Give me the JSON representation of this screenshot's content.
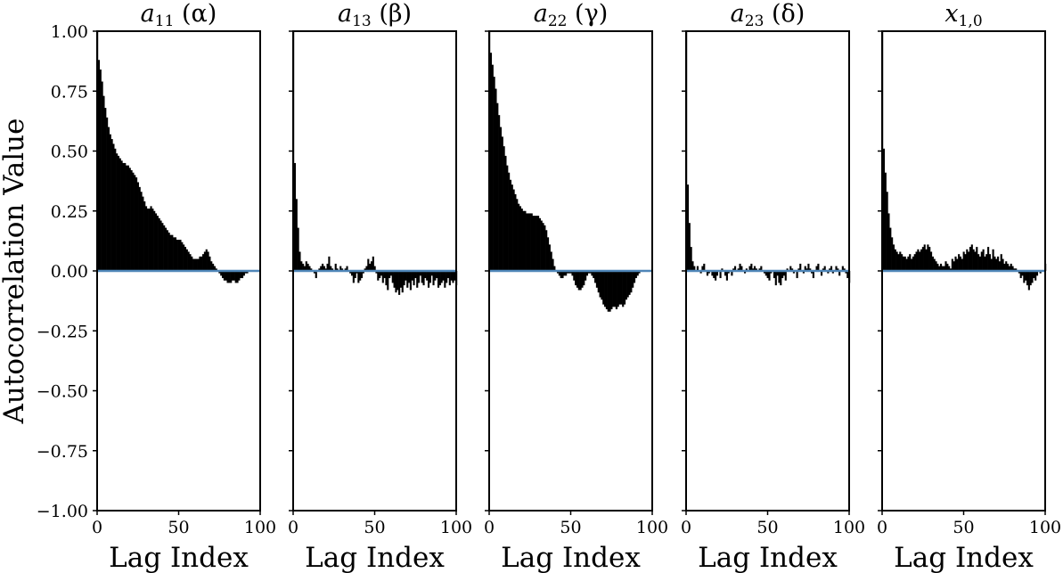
{
  "chart_data": {
    "type": "bar",
    "ylabel": "Autocorrelation Value",
    "ylim": [
      -1.0,
      1.0
    ],
    "yticks": [
      1.0,
      0.75,
      0.5,
      0.25,
      0.0,
      -0.25,
      -0.5,
      -0.75,
      -1.0
    ],
    "yticklabels": [
      "1.00",
      "0.75",
      "0.50",
      "0.25",
      "0.00",
      "−0.25",
      "−0.50",
      "−0.75",
      "−1.00"
    ],
    "xlim": [
      0,
      100
    ],
    "xticks": [
      0,
      50,
      100
    ],
    "xticklabels": [
      "0",
      "50",
      "100"
    ],
    "zero_line_color": "#4f86b8",
    "bar_color": "#000000",
    "grid": false,
    "panels": [
      {
        "title_main": "a",
        "title_sub": "11",
        "title_tail": " (α)",
        "xlabel": "Lag Index",
        "lags": [
          0,
          1,
          2,
          3,
          4,
          5,
          6,
          7,
          8,
          9,
          10,
          11,
          12,
          13,
          14,
          15,
          16,
          17,
          18,
          19,
          20,
          21,
          22,
          23,
          24,
          25,
          26,
          27,
          28,
          29,
          30,
          31,
          32,
          33,
          34,
          35,
          36,
          37,
          38,
          39,
          40,
          41,
          42,
          43,
          44,
          45,
          46,
          47,
          48,
          49,
          50,
          51,
          52,
          53,
          54,
          55,
          56,
          57,
          58,
          59,
          60,
          61,
          62,
          63,
          64,
          65,
          66,
          67,
          68,
          69,
          70,
          71,
          72,
          73,
          74,
          75,
          76,
          77,
          78,
          79,
          80,
          81,
          82,
          83,
          84,
          85,
          86,
          87,
          88,
          89,
          90,
          91,
          92,
          93,
          94,
          95,
          96,
          97,
          98,
          99,
          100
        ],
        "values": [
          1.0,
          0.88,
          0.84,
          0.79,
          0.73,
          0.68,
          0.64,
          0.6,
          0.57,
          0.55,
          0.53,
          0.51,
          0.49,
          0.48,
          0.47,
          0.46,
          0.45,
          0.45,
          0.44,
          0.44,
          0.43,
          0.42,
          0.41,
          0.4,
          0.39,
          0.37,
          0.35,
          0.33,
          0.31,
          0.29,
          0.27,
          0.26,
          0.26,
          0.27,
          0.26,
          0.25,
          0.24,
          0.23,
          0.22,
          0.21,
          0.2,
          0.19,
          0.18,
          0.17,
          0.16,
          0.15,
          0.15,
          0.14,
          0.14,
          0.13,
          0.13,
          0.13,
          0.12,
          0.11,
          0.1,
          0.09,
          0.08,
          0.07,
          0.06,
          0.05,
          0.05,
          0.05,
          0.05,
          0.06,
          0.06,
          0.07,
          0.08,
          0.09,
          0.08,
          0.06,
          0.04,
          0.03,
          0.02,
          0.01,
          0.0,
          -0.01,
          -0.02,
          -0.03,
          -0.04,
          -0.04,
          -0.05,
          -0.05,
          -0.05,
          -0.04,
          -0.04,
          -0.05,
          -0.05,
          -0.04,
          -0.03,
          -0.03,
          -0.02,
          -0.01,
          -0.01,
          0.0,
          0.0,
          0.0,
          0.0,
          0.0,
          0.0,
          0.0,
          0.0
        ]
      },
      {
        "title_main": "a",
        "title_sub": "13",
        "title_tail": " (β)",
        "xlabel": "Lag Index",
        "lags": [
          0,
          1,
          2,
          3,
          4,
          5,
          6,
          7,
          8,
          9,
          10,
          11,
          12,
          13,
          14,
          15,
          16,
          17,
          18,
          19,
          20,
          21,
          22,
          23,
          24,
          25,
          26,
          27,
          28,
          29,
          30,
          31,
          32,
          33,
          34,
          35,
          36,
          37,
          38,
          39,
          40,
          41,
          42,
          43,
          44,
          45,
          46,
          47,
          48,
          49,
          50,
          51,
          52,
          53,
          54,
          55,
          56,
          57,
          58,
          59,
          60,
          61,
          62,
          63,
          64,
          65,
          66,
          67,
          68,
          69,
          70,
          71,
          72,
          73,
          74,
          75,
          76,
          77,
          78,
          79,
          80,
          81,
          82,
          83,
          84,
          85,
          86,
          87,
          88,
          89,
          90,
          91,
          92,
          93,
          94,
          95,
          96,
          97,
          98,
          99,
          100
        ],
        "values": [
          1.0,
          0.45,
          0.3,
          0.18,
          0.08,
          0.04,
          0.03,
          0.02,
          0.04,
          0.03,
          0.02,
          0.01,
          0.0,
          -0.01,
          -0.03,
          0.0,
          0.01,
          0.02,
          0.03,
          0.02,
          0.01,
          0.03,
          0.06,
          0.02,
          0.01,
          0.0,
          0.03,
          0.01,
          0.0,
          0.02,
          0.01,
          0.0,
          0.01,
          0.02,
          0.0,
          -0.01,
          -0.02,
          -0.05,
          -0.03,
          -0.01,
          -0.05,
          -0.04,
          -0.03,
          -0.01,
          0.01,
          0.02,
          0.05,
          0.03,
          0.04,
          0.06,
          0.02,
          -0.01,
          -0.04,
          -0.03,
          -0.02,
          -0.05,
          -0.03,
          -0.06,
          -0.08,
          -0.03,
          -0.02,
          -0.05,
          -0.07,
          -0.09,
          -0.08,
          -0.1,
          -0.07,
          -0.09,
          -0.06,
          -0.04,
          -0.07,
          -0.05,
          -0.08,
          -0.04,
          -0.06,
          -0.03,
          -0.07,
          -0.05,
          -0.02,
          -0.05,
          -0.06,
          -0.03,
          -0.04,
          -0.07,
          -0.05,
          -0.02,
          -0.06,
          -0.04,
          -0.03,
          -0.07,
          -0.06,
          -0.05,
          -0.04,
          -0.07,
          -0.05,
          -0.03,
          -0.06,
          -0.04,
          -0.05,
          -0.04,
          -0.06
        ]
      },
      {
        "title_main": "a",
        "title_sub": "22",
        "title_tail": " (γ)",
        "xlabel": "Lag Index",
        "lags": [
          0,
          1,
          2,
          3,
          4,
          5,
          6,
          7,
          8,
          9,
          10,
          11,
          12,
          13,
          14,
          15,
          16,
          17,
          18,
          19,
          20,
          21,
          22,
          23,
          24,
          25,
          26,
          27,
          28,
          29,
          30,
          31,
          32,
          33,
          34,
          35,
          36,
          37,
          38,
          39,
          40,
          41,
          42,
          43,
          44,
          45,
          46,
          47,
          48,
          49,
          50,
          51,
          52,
          53,
          54,
          55,
          56,
          57,
          58,
          59,
          60,
          61,
          62,
          63,
          64,
          65,
          66,
          67,
          68,
          69,
          70,
          71,
          72,
          73,
          74,
          75,
          76,
          77,
          78,
          79,
          80,
          81,
          82,
          83,
          84,
          85,
          86,
          87,
          88,
          89,
          90,
          91,
          92,
          93,
          94,
          95,
          96,
          97,
          98,
          99,
          100
        ],
        "values": [
          1.0,
          0.91,
          0.86,
          0.81,
          0.76,
          0.7,
          0.65,
          0.6,
          0.56,
          0.52,
          0.48,
          0.44,
          0.41,
          0.38,
          0.36,
          0.34,
          0.32,
          0.3,
          0.28,
          0.27,
          0.26,
          0.25,
          0.25,
          0.24,
          0.24,
          0.24,
          0.24,
          0.23,
          0.23,
          0.23,
          0.23,
          0.22,
          0.21,
          0.2,
          0.19,
          0.17,
          0.14,
          0.11,
          0.08,
          0.05,
          0.02,
          0.0,
          -0.01,
          -0.02,
          -0.03,
          -0.03,
          -0.02,
          -0.02,
          -0.01,
          -0.01,
          -0.01,
          -0.02,
          -0.04,
          -0.06,
          -0.07,
          -0.08,
          -0.08,
          -0.07,
          -0.06,
          -0.04,
          -0.02,
          -0.01,
          -0.01,
          -0.02,
          -0.03,
          -0.05,
          -0.07,
          -0.09,
          -0.11,
          -0.12,
          -0.14,
          -0.15,
          -0.16,
          -0.17,
          -0.17,
          -0.16,
          -0.15,
          -0.15,
          -0.16,
          -0.15,
          -0.14,
          -0.14,
          -0.15,
          -0.14,
          -0.12,
          -0.11,
          -0.1,
          -0.09,
          -0.07,
          -0.05,
          -0.03,
          -0.02,
          -0.01,
          0.0,
          0.0,
          0.0,
          0.0,
          0.0,
          0.0,
          0.0,
          0.0
        ]
      },
      {
        "title_main": "a",
        "title_sub": "23",
        "title_tail": " (δ)",
        "xlabel": "Lag Index",
        "lags": [
          0,
          1,
          2,
          3,
          4,
          5,
          6,
          7,
          8,
          9,
          10,
          11,
          12,
          13,
          14,
          15,
          16,
          17,
          18,
          19,
          20,
          21,
          22,
          23,
          24,
          25,
          26,
          27,
          28,
          29,
          30,
          31,
          32,
          33,
          34,
          35,
          36,
          37,
          38,
          39,
          40,
          41,
          42,
          43,
          44,
          45,
          46,
          47,
          48,
          49,
          50,
          51,
          52,
          53,
          54,
          55,
          56,
          57,
          58,
          59,
          60,
          61,
          62,
          63,
          64,
          65,
          66,
          67,
          68,
          69,
          70,
          71,
          72,
          73,
          74,
          75,
          76,
          77,
          78,
          79,
          80,
          81,
          82,
          83,
          84,
          85,
          86,
          87,
          88,
          89,
          90,
          91,
          92,
          93,
          94,
          95,
          96,
          97,
          98,
          99,
          100
        ],
        "values": [
          1.0,
          0.36,
          0.2,
          0.1,
          0.04,
          0.02,
          0.0,
          0.02,
          0.0,
          -0.01,
          0.02,
          0.03,
          0.0,
          -0.02,
          -0.01,
          0.0,
          -0.02,
          -0.03,
          -0.04,
          -0.02,
          0.0,
          -0.03,
          0.01,
          0.0,
          -0.02,
          -0.04,
          -0.01,
          0.0,
          -0.02,
          0.01,
          0.02,
          0.0,
          0.01,
          0.03,
          0.02,
          0.0,
          -0.01,
          0.01,
          0.0,
          0.02,
          0.03,
          0.01,
          0.02,
          0.01,
          0.0,
          0.01,
          0.02,
          0.0,
          -0.01,
          -0.02,
          -0.03,
          -0.04,
          -0.01,
          0.0,
          -0.03,
          -0.06,
          -0.02,
          -0.05,
          -0.06,
          -0.03,
          -0.02,
          -0.04,
          0.01,
          0.0,
          0.02,
          0.01,
          -0.01,
          0.0,
          -0.03,
          0.01,
          0.03,
          0.0,
          -0.01,
          0.02,
          0.01,
          0.03,
          0.01,
          -0.01,
          -0.03,
          0.0,
          0.02,
          0.03,
          0.0,
          -0.02,
          0.01,
          0.02,
          0.0,
          -0.01,
          0.01,
          0.02,
          -0.01,
          0.0,
          0.02,
          0.01,
          -0.02,
          0.0,
          0.02,
          0.01,
          -0.01,
          -0.03,
          -0.05
        ]
      },
      {
        "title_main": "x",
        "title_sub": "1,0",
        "title_tail": "",
        "xlabel": "Lag Index",
        "lags": [
          0,
          1,
          2,
          3,
          4,
          5,
          6,
          7,
          8,
          9,
          10,
          11,
          12,
          13,
          14,
          15,
          16,
          17,
          18,
          19,
          20,
          21,
          22,
          23,
          24,
          25,
          26,
          27,
          28,
          29,
          30,
          31,
          32,
          33,
          34,
          35,
          36,
          37,
          38,
          39,
          40,
          41,
          42,
          43,
          44,
          45,
          46,
          47,
          48,
          49,
          50,
          51,
          52,
          53,
          54,
          55,
          56,
          57,
          58,
          59,
          60,
          61,
          62,
          63,
          64,
          65,
          66,
          67,
          68,
          69,
          70,
          71,
          72,
          73,
          74,
          75,
          76,
          77,
          78,
          79,
          80,
          81,
          82,
          83,
          84,
          85,
          86,
          87,
          88,
          89,
          90,
          91,
          92,
          93,
          94,
          95,
          96,
          97,
          98,
          99,
          100
        ],
        "values": [
          1.0,
          0.51,
          0.41,
          0.33,
          0.24,
          0.18,
          0.14,
          0.11,
          0.09,
          0.08,
          0.07,
          0.08,
          0.07,
          0.06,
          0.06,
          0.05,
          0.06,
          0.07,
          0.05,
          0.06,
          0.07,
          0.08,
          0.09,
          0.08,
          0.09,
          0.1,
          0.11,
          0.09,
          0.11,
          0.1,
          0.08,
          0.06,
          0.05,
          0.04,
          0.03,
          0.02,
          0.03,
          0.02,
          0.02,
          0.04,
          0.03,
          0.02,
          0.01,
          0.05,
          0.04,
          0.06,
          0.05,
          0.07,
          0.06,
          0.05,
          0.08,
          0.07,
          0.09,
          0.08,
          0.1,
          0.11,
          0.09,
          0.08,
          0.1,
          0.07,
          0.06,
          0.08,
          0.09,
          0.06,
          0.07,
          0.1,
          0.07,
          0.05,
          0.09,
          0.06,
          0.05,
          0.06,
          0.04,
          0.07,
          0.05,
          0.03,
          0.04,
          0.03,
          0.02,
          0.03,
          0.02,
          0.01,
          0.01,
          0.0,
          -0.01,
          -0.03,
          -0.02,
          -0.05,
          -0.04,
          -0.06,
          -0.08,
          -0.06,
          -0.05,
          -0.03,
          -0.04,
          -0.02,
          0.0,
          -0.01,
          0.0,
          0.0,
          0.03
        ]
      }
    ]
  }
}
